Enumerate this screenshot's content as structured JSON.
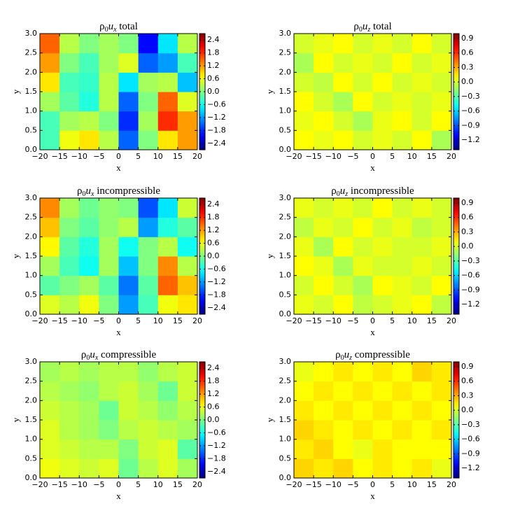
{
  "chart_data": [
    {
      "type": "heatmap",
      "colormap": "jet",
      "title": [
        "ρ",
        "0",
        "u",
        "x",
        " total"
      ],
      "xlabel": "x",
      "ylabel": "y",
      "xlim": [
        -20,
        20
      ],
      "xticks": [
        {
          "value": -20,
          "label": "−20"
        },
        {
          "value": -15,
          "label": "−15"
        },
        {
          "value": -10,
          "label": "−10"
        },
        {
          "value": -5,
          "label": "−5"
        },
        0,
        5,
        10,
        15,
        20
      ],
      "ylim": [
        0,
        3
      ],
      "yticks": [
        {
          "value": 0,
          "label": "0.0"
        },
        0.5,
        {
          "value": 1,
          "label": "1.0"
        },
        1.5,
        {
          "value": 2,
          "label": "2.0"
        },
        2.5,
        {
          "value": 3,
          "label": "3.0"
        }
      ],
      "xbins": [
        -20,
        -15,
        -10,
        -5,
        0,
        5,
        10,
        15,
        20
      ],
      "ybins": [
        0,
        0.5,
        1,
        1.5,
        2,
        2.5,
        3
      ],
      "values": [
        [
          -0.3,
          0.6,
          0.8,
          0.3,
          -1.5,
          0.0,
          0.8,
          1.2
        ],
        [
          -0.3,
          0.2,
          0.3,
          0.0,
          -1.8,
          0.2,
          1.8,
          1.2
        ],
        [
          0.2,
          -0.2,
          -0.5,
          0.3,
          -1.5,
          0.0,
          1.5,
          0.5
        ],
        [
          0.8,
          -0.3,
          -0.4,
          0.3,
          -0.8,
          0.2,
          0.3,
          -1.0
        ],
        [
          1.2,
          0.0,
          -0.3,
          0.2,
          0.5,
          -1.5,
          -1.2,
          -0.3
        ],
        [
          1.5,
          0.3,
          0.0,
          0.2,
          0.0,
          -2.0,
          -0.8,
          0.3
        ]
      ],
      "zlim": [
        -2.7,
        2.7
      ],
      "zticks": [
        {
          "value": -2.4,
          "label": "−2.4"
        },
        {
          "value": -1.8,
          "label": "−1.8"
        },
        {
          "value": -1.2,
          "label": "−1.2"
        },
        {
          "value": -0.6,
          "label": "−0.6"
        },
        {
          "value": 0,
          "label": "0.0"
        },
        0.6,
        1.2,
        1.8,
        2.4
      ]
    },
    {
      "type": "heatmap",
      "colormap": "jet",
      "title": [
        "ρ",
        "0",
        "u",
        "z",
        " total"
      ],
      "xlabel": "x",
      "ylabel": "y",
      "xlim": [
        -20,
        20
      ],
      "xticks": [
        {
          "value": -20,
          "label": "−20"
        },
        {
          "value": -15,
          "label": "−15"
        },
        {
          "value": -10,
          "label": "−10"
        },
        {
          "value": -5,
          "label": "−5"
        },
        0,
        5,
        10,
        15,
        20
      ],
      "ylim": [
        0,
        3
      ],
      "yticks": [
        {
          "value": 0,
          "label": "0.0"
        },
        0.5,
        {
          "value": 1,
          "label": "1.0"
        },
        1.5,
        {
          "value": 2,
          "label": "2.0"
        },
        2.5,
        {
          "value": 3,
          "label": "3.0"
        }
      ],
      "xbins": [
        -20,
        -15,
        -10,
        -5,
        0,
        5,
        10,
        15,
        20
      ],
      "ybins": [
        0,
        0.5,
        1,
        1.5,
        2,
        2.5,
        3
      ],
      "values": [
        [
          0.1,
          0.05,
          0.1,
          0.0,
          0.05,
          0.0,
          0.1,
          -0.1
        ],
        [
          0.05,
          0.1,
          0.0,
          -0.1,
          0.05,
          0.1,
          0.0,
          0.1
        ],
        [
          0.1,
          0.0,
          -0.1,
          0.1,
          0.0,
          0.05,
          0.0,
          0.05
        ],
        [
          0.0,
          -0.05,
          0.1,
          0.0,
          0.1,
          0.0,
          0.05,
          0.0
        ],
        [
          -0.1,
          0.1,
          0.0,
          0.05,
          0.0,
          0.1,
          0.0,
          0.05
        ],
        [
          0.0,
          0.05,
          0.1,
          0.0,
          0.05,
          0.0,
          0.1,
          0.0
        ]
      ],
      "zlim": [
        -1.4,
        1.0
      ],
      "zticks": [
        {
          "value": -1.2,
          "label": "−1.2"
        },
        {
          "value": -0.9,
          "label": "−0.9"
        },
        {
          "value": -0.6,
          "label": "−0.6"
        },
        {
          "value": -0.3,
          "label": "−0.3"
        },
        {
          "value": 0,
          "label": "0.0"
        },
        0.3,
        0.6,
        0.9
      ]
    },
    {
      "type": "heatmap",
      "colormap": "jet",
      "title": [
        "ρ",
        "0",
        "u",
        "x",
        " incompressible"
      ],
      "xlabel": "x",
      "ylabel": "y",
      "xlim": [
        -20,
        20
      ],
      "xticks": [
        {
          "value": -20,
          "label": "−20"
        },
        {
          "value": -15,
          "label": "−15"
        },
        {
          "value": -10,
          "label": "−10"
        },
        {
          "value": -5,
          "label": "−5"
        },
        0,
        5,
        10,
        15,
        20
      ],
      "ylim": [
        0,
        3
      ],
      "yticks": [
        {
          "value": 0,
          "label": "0.0"
        },
        0.5,
        {
          "value": 1,
          "label": "1.0"
        },
        1.5,
        {
          "value": 2,
          "label": "2.0"
        },
        2.5,
        {
          "value": 3,
          "label": "3.0"
        }
      ],
      "xbins": [
        -20,
        -15,
        -10,
        -5,
        0,
        5,
        10,
        15,
        20
      ],
      "ybins": [
        0,
        0.5,
        1,
        1.5,
        2,
        2.5,
        3
      ],
      "values": [
        [
          0.5,
          0.3,
          0.6,
          0.0,
          -1.2,
          -0.3,
          0.6,
          0.8
        ],
        [
          -0.2,
          0.0,
          0.2,
          -0.2,
          -1.4,
          -0.2,
          1.5,
          1.0
        ],
        [
          0.2,
          -0.3,
          -0.6,
          0.2,
          -1.0,
          0.0,
          1.3,
          0.3
        ],
        [
          0.7,
          -0.2,
          -0.5,
          0.2,
          -0.6,
          0.0,
          0.3,
          -0.6
        ],
        [
          1.0,
          0.0,
          -0.2,
          0.1,
          0.3,
          -1.2,
          -0.5,
          -0.2
        ],
        [
          1.3,
          0.2,
          -0.1,
          0.1,
          0.0,
          -1.6,
          -0.8,
          0.4
        ]
      ],
      "zlim": [
        -2.7,
        2.7
      ],
      "zticks": [
        {
          "value": -2.4,
          "label": "−2.4"
        },
        {
          "value": -1.8,
          "label": "−1.8"
        },
        {
          "value": -1.2,
          "label": "−1.2"
        },
        {
          "value": -0.6,
          "label": "−0.6"
        },
        {
          "value": 0,
          "label": "0.0"
        },
        0.6,
        1.2,
        1.8,
        2.4
      ]
    },
    {
      "type": "heatmap",
      "colormap": "jet",
      "title": [
        "ρ",
        "0",
        "u",
        "z",
        " incompressible"
      ],
      "xlabel": "x",
      "ylabel": "y",
      "xlim": [
        -20,
        20
      ],
      "xticks": [
        {
          "value": -20,
          "label": "−20"
        },
        {
          "value": -15,
          "label": "−15"
        },
        {
          "value": -10,
          "label": "−10"
        },
        {
          "value": -5,
          "label": "−5"
        },
        0,
        5,
        10,
        15,
        20
      ],
      "ylim": [
        0,
        3
      ],
      "yticks": [
        {
          "value": 0,
          "label": "0.0"
        },
        0.5,
        {
          "value": 1,
          "label": "1.0"
        },
        1.5,
        {
          "value": 2,
          "label": "2.0"
        },
        2.5,
        {
          "value": 3,
          "label": "3.0"
        }
      ],
      "xbins": [
        -20,
        -15,
        -10,
        -5,
        0,
        5,
        10,
        15,
        20
      ],
      "ybins": [
        0,
        0.5,
        1,
        1.5,
        2,
        2.5,
        3
      ],
      "values": [
        [
          0.05,
          0.0,
          0.1,
          -0.05,
          0.0,
          0.05,
          0.1,
          -0.05
        ],
        [
          0.0,
          0.1,
          0.0,
          -0.1,
          0.1,
          0.05,
          0.0,
          0.1
        ],
        [
          0.1,
          0.05,
          -0.1,
          0.05,
          0.0,
          0.0,
          0.05,
          0.0
        ],
        [
          0.05,
          -0.1,
          0.1,
          0.0,
          0.05,
          0.0,
          0.0,
          0.05
        ],
        [
          -0.05,
          0.05,
          0.0,
          0.1,
          0.0,
          0.05,
          -0.05,
          0.0
        ],
        [
          0.05,
          0.0,
          0.05,
          0.0,
          0.1,
          0.0,
          0.05,
          0.0
        ]
      ],
      "zlim": [
        -1.4,
        1.0
      ],
      "zticks": [
        {
          "value": -1.2,
          "label": "−1.2"
        },
        {
          "value": -0.9,
          "label": "−0.9"
        },
        {
          "value": -0.6,
          "label": "−0.6"
        },
        {
          "value": -0.3,
          "label": "−0.3"
        },
        {
          "value": 0,
          "label": "0.0"
        },
        0.3,
        0.6,
        0.9
      ]
    },
    {
      "type": "heatmap",
      "colormap": "jet",
      "title": [
        "ρ",
        "0",
        "u",
        "x",
        " compressible"
      ],
      "xlabel": "x",
      "ylabel": "y",
      "xlim": [
        -20,
        20
      ],
      "xticks": [
        {
          "value": -20,
          "label": "−20"
        },
        {
          "value": -15,
          "label": "−15"
        },
        {
          "value": -10,
          "label": "−10"
        },
        {
          "value": -5,
          "label": "−5"
        },
        0,
        5,
        10,
        15,
        20
      ],
      "ylim": [
        0,
        3
      ],
      "yticks": [
        {
          "value": 0,
          "label": "0.0"
        },
        0.5,
        {
          "value": 1,
          "label": "1.0"
        },
        1.5,
        {
          "value": 2,
          "label": "2.0"
        },
        2.5,
        {
          "value": 3,
          "label": "3.0"
        }
      ],
      "xbins": [
        -20,
        -15,
        -10,
        -5,
        0,
        5,
        10,
        15,
        20
      ],
      "ybins": [
        0,
        0.5,
        1,
        1.5,
        2,
        2.5,
        3
      ],
      "values": [
        [
          0.6,
          0.5,
          0.4,
          0.5,
          -0.1,
          0.3,
          0.5,
          0.2
        ],
        [
          0.5,
          0.4,
          0.3,
          0.3,
          0.0,
          0.4,
          0.5,
          -0.2
        ],
        [
          0.5,
          0.3,
          0.2,
          0.0,
          0.3,
          0.4,
          0.3,
          0.2
        ],
        [
          0.4,
          0.3,
          0.2,
          -0.1,
          0.4,
          0.3,
          0.1,
          0.3
        ],
        [
          0.3,
          0.2,
          0.1,
          0.3,
          0.4,
          0.2,
          -0.1,
          0.4
        ],
        [
          0.2,
          0.3,
          0.2,
          0.3,
          0.3,
          0.1,
          0.3,
          0.4
        ]
      ],
      "zlim": [
        -2.7,
        2.7
      ],
      "zticks": [
        {
          "value": -2.4,
          "label": "−2.4"
        },
        {
          "value": -1.8,
          "label": "−1.8"
        },
        {
          "value": -1.2,
          "label": "−1.2"
        },
        {
          "value": -0.6,
          "label": "−0.6"
        },
        {
          "value": 0,
          "label": "0.0"
        },
        0.6,
        1.2,
        1.8,
        2.4
      ]
    },
    {
      "type": "heatmap",
      "colormap": "jet",
      "title": [
        "ρ",
        "0",
        "u",
        "z",
        " compressible"
      ],
      "xlabel": "x",
      "ylabel": "y",
      "xlim": [
        -20,
        20
      ],
      "xticks": [
        {
          "value": -20,
          "label": "−20"
        },
        {
          "value": -15,
          "label": "−15"
        },
        {
          "value": -10,
          "label": "−10"
        },
        {
          "value": -5,
          "label": "−5"
        },
        0,
        5,
        10,
        15,
        20
      ],
      "ylim": [
        0,
        3
      ],
      "yticks": [
        {
          "value": 0,
          "label": "0.0"
        },
        0.5,
        {
          "value": 1,
          "label": "1.0"
        },
        1.5,
        {
          "value": 2,
          "label": "2.0"
        },
        2.5,
        {
          "value": 3,
          "label": "3.0"
        }
      ],
      "xbins": [
        -20,
        -15,
        -10,
        -5,
        0,
        5,
        10,
        15,
        20
      ],
      "ybins": [
        0,
        0.5,
        1,
        1.5,
        2,
        2.5,
        3
      ],
      "values": [
        [
          0.2,
          0.15,
          0.2,
          0.1,
          0.15,
          0.1,
          0.15,
          0.05
        ],
        [
          0.15,
          0.2,
          0.1,
          0.05,
          0.15,
          0.1,
          0.1,
          0.1
        ],
        [
          0.2,
          0.15,
          0.1,
          0.15,
          0.1,
          0.15,
          0.1,
          0.15
        ],
        [
          0.15,
          0.1,
          0.15,
          0.1,
          0.15,
          0.1,
          0.15,
          0.1
        ],
        [
          0.1,
          0.15,
          0.1,
          0.15,
          0.1,
          0.15,
          0.1,
          0.15
        ],
        [
          0.05,
          0.1,
          0.15,
          0.1,
          0.15,
          0.1,
          0.2,
          0.15
        ]
      ],
      "zlim": [
        -1.4,
        1.0
      ],
      "zticks": [
        {
          "value": -1.2,
          "label": "−1.2"
        },
        {
          "value": -0.9,
          "label": "−0.9"
        },
        {
          "value": -0.6,
          "label": "−0.6"
        },
        {
          "value": -0.3,
          "label": "−0.3"
        },
        {
          "value": 0,
          "label": "0.0"
        },
        0.3,
        0.6,
        0.9
      ]
    }
  ]
}
